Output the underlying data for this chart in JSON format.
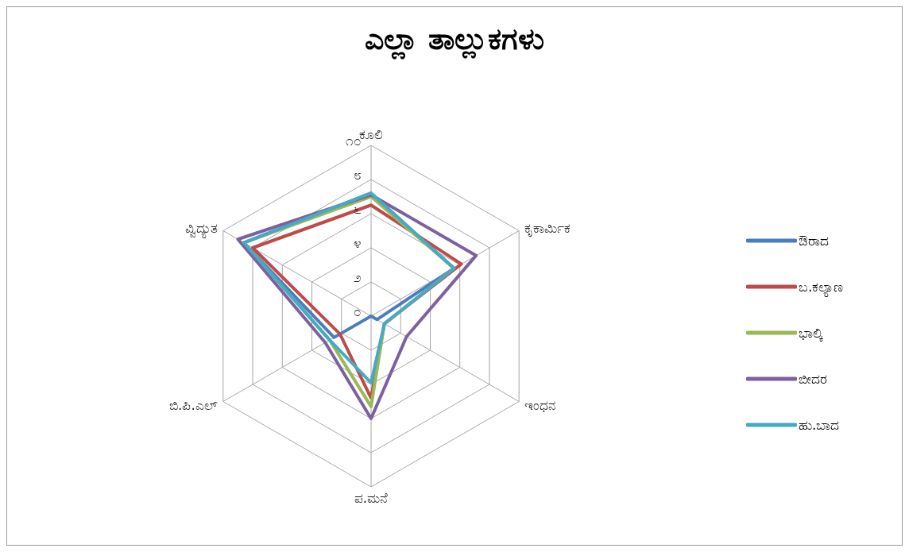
{
  "chart_data": {
    "type": "radar",
    "title": "ಎಲ್ಲಾ ತಾಲ್ಲುಕಗಳು",
    "categories": [
      "ಕೂಲಿ",
      "ಕೃಕಾರ್ಮಿಕ",
      "ಇಂಧನ",
      "ಪ.ಮನೆ",
      "ಬಿ.ಪಿ.ಎಲ್",
      "ವ್ವಿದ್ಯುತ"
    ],
    "series": [
      {
        "name": "ಔರಾದ",
        "color": "#4a7ebb",
        "values": [
          7.2,
          5.6,
          0.4,
          0,
          2.5,
          8.6
        ]
      },
      {
        "name": "ಬ.ಕಲ್ಯಾಣ",
        "color": "#be4b48",
        "values": [
          6.5,
          6.1,
          0.9,
          4.8,
          2.1,
          8.0
        ]
      },
      {
        "name": "ಭಾಲ್ಕಿ",
        "color": "#98b954",
        "values": [
          7.0,
          5.6,
          0.9,
          5.3,
          2.8,
          8.6
        ]
      },
      {
        "name": "ಬೀದರ",
        "color": "#7d60a0",
        "values": [
          7.1,
          7.1,
          2.4,
          6.0,
          3.1,
          9.0
        ]
      },
      {
        "name": "ಹು.ಬಾದ",
        "color": "#46aac5",
        "values": [
          7.2,
          5.6,
          0.9,
          3.9,
          2.8,
          8.6
        ]
      }
    ],
    "ylim": [
      0,
      10
    ],
    "yticks": [
      {
        "value": 0,
        "label": "೦"
      },
      {
        "value": 2,
        "label": "೨"
      },
      {
        "value": 4,
        "label": "೪"
      },
      {
        "value": 6,
        "label": "೬"
      },
      {
        "value": 8,
        "label": "೮"
      },
      {
        "value": 10,
        "label": "೧೦"
      }
    ],
    "grid": true,
    "legend": "right",
    "marker": "none"
  }
}
